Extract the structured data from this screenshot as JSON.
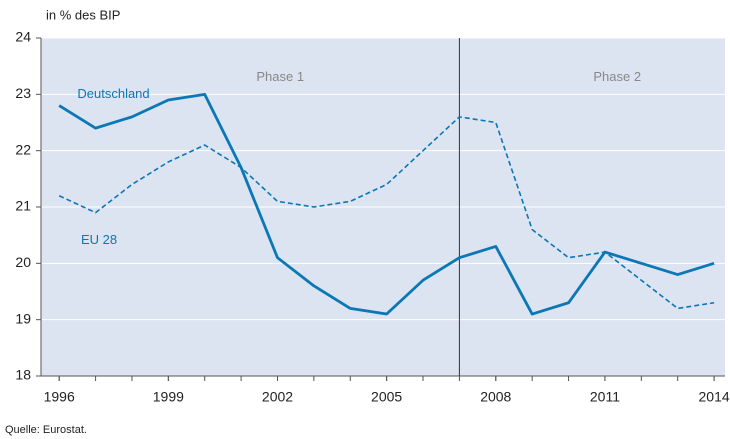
{
  "chart_data": {
    "type": "line",
    "y_unit_label": "in % des BIP",
    "source": "Quelle: Eurostat.",
    "x": [
      1996,
      1997,
      1998,
      1999,
      2000,
      2001,
      2002,
      2003,
      2004,
      2005,
      2006,
      2007,
      2008,
      2009,
      2010,
      2011,
      2012,
      2013,
      2014
    ],
    "series": [
      {
        "name": "Deutschland",
        "color": "#0b77b5",
        "dashed": false,
        "values": [
          22.8,
          22.4,
          22.6,
          22.9,
          23.0,
          21.7,
          20.1,
          19.6,
          19.2,
          19.1,
          19.7,
          20.1,
          20.3,
          19.1,
          19.3,
          20.2,
          20.0,
          19.8,
          20.0
        ]
      },
      {
        "name": "EU 28",
        "color": "#0b77b5",
        "dashed": true,
        "values": [
          21.2,
          20.9,
          21.4,
          21.8,
          22.1,
          21.7,
          21.1,
          21.0,
          21.1,
          21.4,
          22.0,
          22.6,
          22.5,
          20.6,
          20.1,
          20.2,
          19.7,
          19.2,
          19.3
        ]
      }
    ],
    "phases": [
      {
        "label": "Phase 1"
      },
      {
        "label": "Phase 2"
      }
    ],
    "divider_x": 2007,
    "xlim": [
      1995.5,
      2014.3
    ],
    "xticks": [
      1996,
      1999,
      2002,
      2005,
      2008,
      2011,
      2014
    ],
    "ylim": [
      18,
      24
    ],
    "yticks": [
      18,
      19,
      20,
      21,
      22,
      23,
      24
    ],
    "grid": true,
    "background": "#dce3f1"
  }
}
